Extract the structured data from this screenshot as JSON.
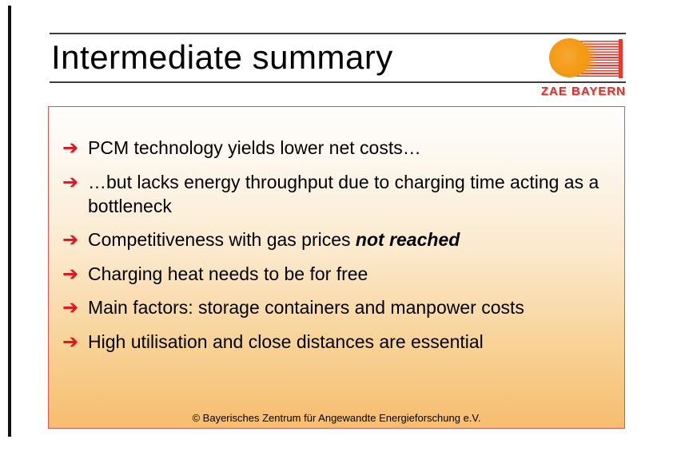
{
  "slide": {
    "title": "Intermediate summary",
    "logo": {
      "text": "ZAE BAYERN"
    },
    "bullet_icon": "➔",
    "bullets": [
      {
        "pre": "PCM technology yields lower net costs…",
        "em": ""
      },
      {
        "pre": "…but lacks energy throughput due to charging time acting as a bottleneck",
        "em": ""
      },
      {
        "pre": "Competitiveness with gas prices ",
        "em": "not reached"
      },
      {
        "pre": "Charging heat needs to be for free",
        "em": ""
      },
      {
        "pre": "Main factors: storage containers and manpower costs",
        "em": ""
      },
      {
        "pre": "High utilisation and close distances are essential",
        "em": ""
      }
    ],
    "footer": "© Bayerisches Zentrum für Angewandte Energieforschung e.V.",
    "colors": {
      "arrow_red": "#e8111e",
      "box_border_red": "#dc5750",
      "gradient_top": "#fffefd",
      "gradient_bottom": "#f6bd6e",
      "logo_orange": "#f3960f",
      "logo_red": "#dd3327",
      "rule_gray": "#3d3d3d",
      "left_rule_black": "#111111"
    }
  }
}
